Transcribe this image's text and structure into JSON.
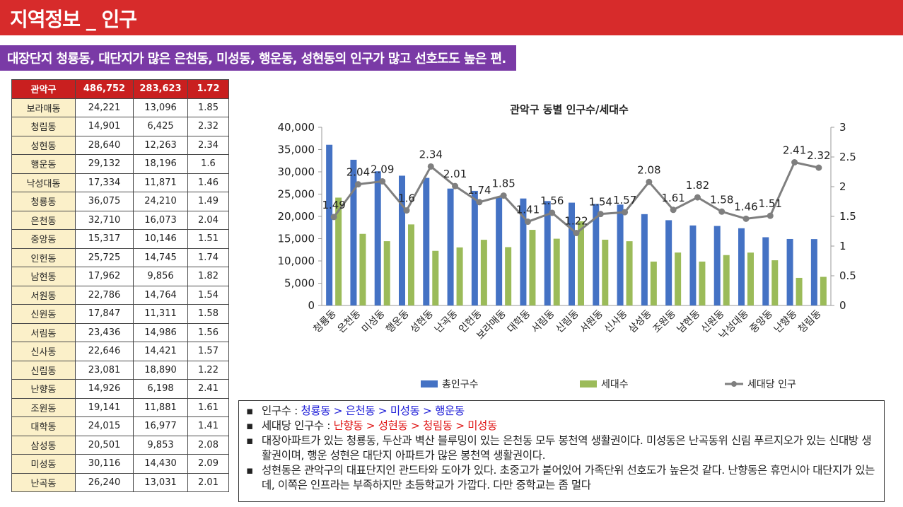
{
  "header": {
    "title": "지역정보 _ 인구"
  },
  "subtitle": "대장단지 청룡동, 대단지가 많은 은천동, 미성동, 행운동, 성현동의 인구가 많고 선호도도 높은 편.",
  "table": {
    "header": [
      "관악구",
      "486,752",
      "283,623",
      "1.72"
    ],
    "rows": [
      [
        "보라매동",
        "24,221",
        "13,096",
        "1.85"
      ],
      [
        "청림동",
        "14,901",
        "6,425",
        "2.32"
      ],
      [
        "성현동",
        "28,640",
        "12,263",
        "2.34"
      ],
      [
        "행운동",
        "29,132",
        "18,196",
        "1.6"
      ],
      [
        "낙성대동",
        "17,334",
        "11,871",
        "1.46"
      ],
      [
        "청룡동",
        "36,075",
        "24,210",
        "1.49"
      ],
      [
        "은천동",
        "32,710",
        "16,073",
        "2.04"
      ],
      [
        "중앙동",
        "15,317",
        "10,146",
        "1.51"
      ],
      [
        "인헌동",
        "25,725",
        "14,745",
        "1.74"
      ],
      [
        "남현동",
        "17,962",
        "9,856",
        "1.82"
      ],
      [
        "서원동",
        "22,786",
        "14,764",
        "1.54"
      ],
      [
        "신원동",
        "17,847",
        "11,311",
        "1.58"
      ],
      [
        "서림동",
        "23,436",
        "14,986",
        "1.56"
      ],
      [
        "신사동",
        "22,646",
        "14,421",
        "1.57"
      ],
      [
        "신림동",
        "23,081",
        "18,890",
        "1.22"
      ],
      [
        "난향동",
        "14,926",
        "6,198",
        "2.41"
      ],
      [
        "조원동",
        "19,141",
        "11,881",
        "1.61"
      ],
      [
        "대학동",
        "24,015",
        "16,977",
        "1.41"
      ],
      [
        "삼성동",
        "20,501",
        "9,853",
        "2.08"
      ],
      [
        "미성동",
        "30,116",
        "14,430",
        "2.09"
      ],
      [
        "난곡동",
        "26,240",
        "13,031",
        "2.01"
      ]
    ]
  },
  "chart_data": {
    "type": "bar",
    "title": "관악구 동별 인구수/세대수",
    "categories": [
      "청룡동",
      "은천동",
      "미성동",
      "행운동",
      "성현동",
      "난곡동",
      "인헌동",
      "보라매동",
      "대학동",
      "서림동",
      "신림동",
      "서원동",
      "신사동",
      "삼성동",
      "조원동",
      "남현동",
      "신원동",
      "낙성대동",
      "중앙동",
      "난향동",
      "청림동"
    ],
    "series": [
      {
        "name": "총인구수",
        "type": "bar",
        "axis": "left",
        "color": "#4472c4",
        "values": [
          36075,
          32710,
          30116,
          29132,
          28640,
          26240,
          25725,
          24221,
          24015,
          23436,
          23081,
          22786,
          22646,
          20501,
          19141,
          17962,
          17847,
          17334,
          15317,
          14926,
          14901
        ]
      },
      {
        "name": "세대수",
        "type": "bar",
        "axis": "left",
        "color": "#9bbb59",
        "values": [
          24210,
          16073,
          14430,
          18196,
          12263,
          13031,
          14745,
          13096,
          16977,
          14986,
          18890,
          14764,
          14421,
          9853,
          11881,
          9856,
          11311,
          11871,
          10146,
          6198,
          6425
        ]
      },
      {
        "name": "세대당 인구",
        "type": "line",
        "axis": "right",
        "color": "#7f7f7f",
        "values": [
          1.49,
          2.04,
          2.09,
          1.6,
          2.34,
          2.01,
          1.74,
          1.85,
          1.41,
          1.56,
          1.22,
          1.54,
          1.57,
          2.08,
          1.61,
          1.82,
          1.58,
          1.46,
          1.51,
          2.41,
          2.32
        ]
      }
    ],
    "y_left": {
      "min": 0,
      "max": 40000,
      "step": 5000,
      "ticks": [
        "0",
        "5,000",
        "10,000",
        "15,000",
        "20,000",
        "25,000",
        "30,000",
        "35,000",
        "40,000"
      ]
    },
    "y_right": {
      "min": 0,
      "max": 3,
      "step": 0.5,
      "ticks": [
        "0",
        "0.5",
        "1",
        "1.5",
        "2",
        "2.5",
        "3"
      ]
    },
    "legend": "bottom",
    "grid": false,
    "data_labels": "line-series"
  },
  "notes": {
    "items": [
      [
        {
          "text": "인구수 : "
        },
        {
          "text": "청룡동 > 은천동 > 미성동 > 행운동",
          "color": "blue"
        }
      ],
      [
        {
          "text": "세대당 인구수 : "
        },
        {
          "text": "난향동 > 성현동 > 청림동 > 미성동",
          "color": "red"
        }
      ],
      [
        {
          "text": "대장아파트가 있는 청룡동, 두산과 벽산 블루밍이 있는 은천동 모두 봉천역 생활권이다. 미성동은 난곡동위 신림 푸르지오가 있는 신대방 생활권이며, 행운 성현은 대단지 아파트가 많은 봉천역 생활권이다."
        }
      ],
      [
        {
          "text": "성현동은 관악구의 대표단지인 관드타와 도아가 있다. 초중고가 붙어있어 가족단위 선호도가 높은것 같다. 난향동은 휴먼시아 대단지가 있는데, 이쪽은 인프라는 부족하지만 초등학교가 가깝다. 다만 중학교는 좀 멀다"
        }
      ]
    ]
  }
}
